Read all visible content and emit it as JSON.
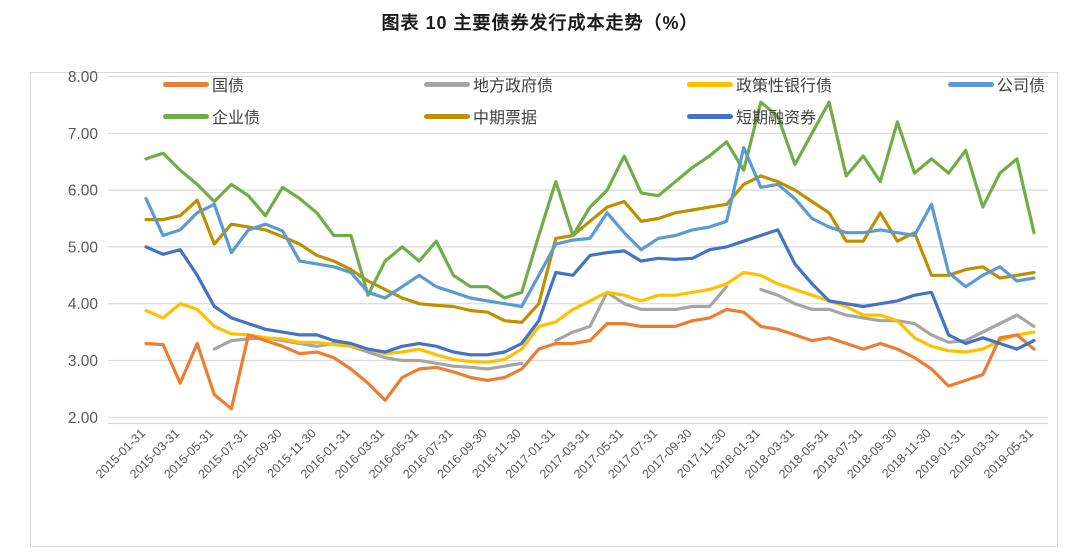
{
  "title": "图表 10 主要债券发行成本走势（%）",
  "chart_data": {
    "type": "line",
    "title": "图表 10 主要债券发行成本走势（%）",
    "grid": true,
    "legend_position": "top",
    "y_axis": {
      "min": 2,
      "max": 8,
      "step": 1,
      "tick_labels": [
        "2.00",
        "3.00",
        "4.00",
        "5.00",
        "6.00",
        "7.00",
        "8.00"
      ]
    },
    "x_tick_labels": [
      "2015-01-31",
      "2015-03-31",
      "2015-05-31",
      "2015-07-31",
      "2015-09-30",
      "2015-11-30",
      "2016-01-31",
      "2016-03-31",
      "2016-05-31",
      "2016-07-31",
      "2016-09-30",
      "2016-11-30",
      "2017-01-31",
      "2017-03-31",
      "2017-05-31",
      "2017-07-31",
      "2017-09-30",
      "2017-11-30",
      "2018-01-31",
      "2018-03-31",
      "2018-05-31",
      "2018-07-31",
      "2018-09-30",
      "2018-11-30",
      "2019-01-31",
      "2019-03-31",
      "2019-05-31"
    ],
    "x_points_per_tick": 2,
    "series": [
      {
        "name": "国债",
        "color": "#ED7D31",
        "values": [
          3.3,
          3.28,
          2.6,
          3.3,
          2.4,
          2.15,
          3.45,
          3.35,
          3.25,
          3.12,
          3.15,
          3.05,
          2.85,
          2.6,
          2.3,
          2.7,
          2.85,
          2.88,
          2.8,
          2.7,
          2.65,
          2.7,
          2.85,
          3.2,
          3.3,
          3.3,
          3.35,
          3.65,
          3.65,
          3.6,
          3.6,
          3.6,
          3.7,
          3.75,
          3.9,
          3.85,
          3.6,
          3.55,
          3.45,
          3.35,
          3.4,
          3.3,
          3.2,
          3.3,
          3.2,
          3.05,
          2.85,
          2.55,
          2.65,
          2.75,
          3.4,
          3.45,
          3.2
        ]
      },
      {
        "name": "地方政府债",
        "color": "#A5A5A5",
        "values": [
          null,
          null,
          null,
          null,
          3.2,
          3.35,
          3.38,
          3.4,
          3.35,
          3.3,
          3.25,
          3.3,
          3.25,
          3.15,
          3.05,
          3.0,
          3.0,
          2.95,
          2.9,
          2.88,
          2.85,
          2.9,
          2.95,
          null,
          3.35,
          3.5,
          3.6,
          4.2,
          4.0,
          3.9,
          3.9,
          3.9,
          3.95,
          3.95,
          4.3,
          null,
          4.25,
          4.15,
          4.0,
          3.9,
          3.9,
          3.8,
          3.75,
          3.7,
          3.7,
          3.65,
          3.45,
          3.32,
          3.35,
          3.5,
          3.65,
          3.8,
          3.6
        ]
      },
      {
        "name": "政策性银行债",
        "color": "#FFC000",
        "values": [
          3.88,
          3.75,
          4.0,
          3.9,
          3.6,
          3.47,
          3.45,
          3.4,
          3.38,
          3.32,
          3.32,
          3.28,
          3.25,
          3.2,
          3.12,
          3.15,
          3.2,
          3.1,
          3.02,
          2.98,
          2.97,
          3.02,
          3.2,
          3.6,
          3.68,
          3.9,
          4.05,
          4.2,
          4.15,
          4.05,
          4.15,
          4.15,
          4.2,
          4.25,
          4.35,
          4.55,
          4.5,
          4.35,
          4.25,
          4.15,
          4.05,
          3.95,
          3.8,
          3.8,
          3.7,
          3.4,
          3.25,
          3.17,
          3.15,
          3.2,
          3.35,
          3.45,
          3.5
        ]
      },
      {
        "name": "公司债",
        "color": "#5B9BD5",
        "values": [
          5.85,
          5.2,
          5.3,
          5.6,
          5.75,
          4.9,
          5.3,
          5.4,
          5.28,
          4.75,
          4.7,
          4.65,
          4.55,
          4.2,
          4.1,
          4.3,
          4.5,
          4.3,
          4.2,
          4.1,
          4.05,
          4.0,
          3.95,
          4.5,
          5.05,
          5.12,
          5.15,
          5.6,
          5.25,
          4.95,
          5.15,
          5.2,
          5.3,
          5.35,
          5.45,
          6.75,
          6.05,
          6.1,
          5.85,
          5.5,
          5.35,
          5.25,
          5.25,
          5.3,
          5.25,
          5.2,
          5.75,
          4.55,
          4.3,
          4.5,
          4.65,
          4.4,
          4.45
        ]
      },
      {
        "name": "企业债",
        "color": "#70AD47",
        "values": [
          6.55,
          6.65,
          6.35,
          6.1,
          5.8,
          6.1,
          5.9,
          5.55,
          6.05,
          5.85,
          5.6,
          5.2,
          5.2,
          4.15,
          4.75,
          5.0,
          4.75,
          5.1,
          4.5,
          4.3,
          4.3,
          4.1,
          4.2,
          5.2,
          6.15,
          5.2,
          5.7,
          6.0,
          6.6,
          5.95,
          5.9,
          6.15,
          6.4,
          6.6,
          6.85,
          6.35,
          7.55,
          7.3,
          6.45,
          7.0,
          7.55,
          6.25,
          6.6,
          6.15,
          7.2,
          6.3,
          6.55,
          6.3,
          6.7,
          5.7,
          6.3,
          6.55,
          5.25
        ]
      },
      {
        "name": "中期票据",
        "color": "#BF8F00",
        "values": [
          5.48,
          5.48,
          5.55,
          5.82,
          5.05,
          5.4,
          5.35,
          5.3,
          5.18,
          5.05,
          4.85,
          4.75,
          4.6,
          4.4,
          4.25,
          4.1,
          4.0,
          3.97,
          3.95,
          3.88,
          3.85,
          3.7,
          3.67,
          4.0,
          5.15,
          5.2,
          5.45,
          5.7,
          5.8,
          5.45,
          5.5,
          5.6,
          5.65,
          5.7,
          5.75,
          6.1,
          6.25,
          6.15,
          6.0,
          5.8,
          5.6,
          5.1,
          5.1,
          5.6,
          5.1,
          5.25,
          4.5,
          4.5,
          4.6,
          4.65,
          4.45,
          4.5,
          4.55
        ]
      },
      {
        "name": "短期融资券",
        "color": "#4472C4",
        "values": [
          5.0,
          4.87,
          4.95,
          4.5,
          3.95,
          3.75,
          3.65,
          3.55,
          3.5,
          3.45,
          3.45,
          3.35,
          3.3,
          3.2,
          3.15,
          3.25,
          3.3,
          3.25,
          3.15,
          3.1,
          3.1,
          3.15,
          3.3,
          3.7,
          4.55,
          4.5,
          4.85,
          4.9,
          4.93,
          4.75,
          4.8,
          4.78,
          4.8,
          4.95,
          5.0,
          5.1,
          5.2,
          5.3,
          4.7,
          4.35,
          4.05,
          4.0,
          3.95,
          4.0,
          4.05,
          4.15,
          4.2,
          3.45,
          3.3,
          3.4,
          3.3,
          3.2,
          3.35
        ]
      }
    ],
    "legend_rows": [
      [
        "国债",
        "地方政府债",
        "政策性银行债",
        "公司债"
      ],
      [
        "企业债",
        "中期票据",
        "短期融资券"
      ]
    ],
    "draw_order": [
      "地方政府债",
      "政策性银行债",
      "国债",
      "中期票据",
      "企业债",
      "公司债",
      "短期融资券"
    ]
  }
}
